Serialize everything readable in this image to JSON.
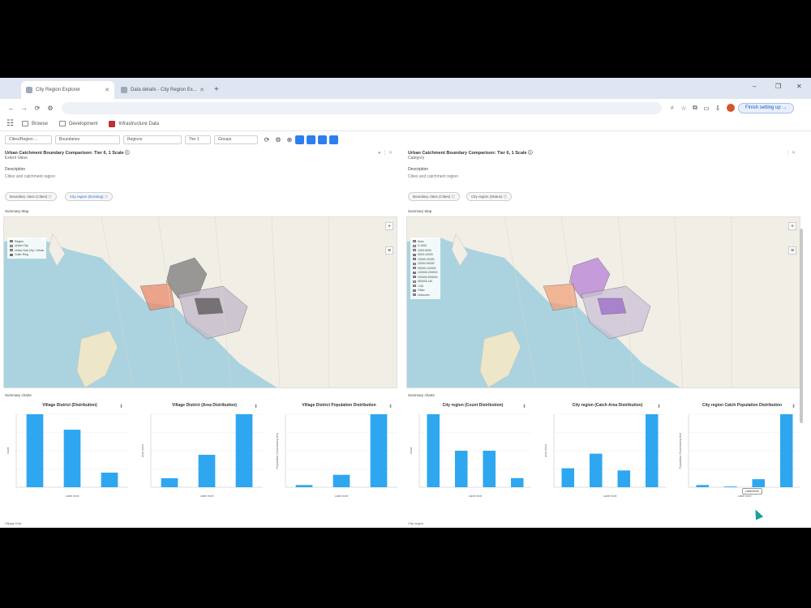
{
  "browser": {
    "tabs": [
      {
        "label": "City Region Explorer"
      },
      {
        "label": "Data details - City Region Ex..."
      }
    ],
    "address": "",
    "finish_label": "Finish setting up →",
    "window_controls": [
      "–",
      "❐",
      "✕"
    ]
  },
  "app": {
    "menu": [
      {
        "label": "Browse"
      },
      {
        "label": "Development"
      },
      {
        "label": "Infrastructure Data"
      }
    ]
  },
  "filters": {
    "selects": [
      "Cities/Region ...",
      "Boundaries",
      "Regions",
      "Tier 1",
      "Groups"
    ]
  },
  "panels": [
    {
      "title": "Urban Catchment Boundary Comparison: Tier 6, 1 Scale ⓘ",
      "subtitle": "Extent Value",
      "label": "Description",
      "value": "Cities and catchment region",
      "chips": [
        "Boundary class (Cities) ⓘ",
        "City region (Existing) ⓘ"
      ],
      "map_label": "Summary Map",
      "legend": [
        "Region",
        "Urban City",
        "Urban Sub-City / Urban",
        "Outer Ring"
      ],
      "chart_section": "Summary charts",
      "charts": [
        {
          "title": "Village District (Distribution)",
          "values": [
            85,
            67,
            17
          ],
          "categories": [
            "",
            "",
            ""
          ],
          "x_label": "Label level",
          "y_label": "count"
        },
        {
          "title": "Village District (Area Distribution)",
          "values": [
            10,
            36,
            81
          ],
          "categories": [
            "",
            "",
            ""
          ],
          "x_label": "Label level",
          "y_label": "area (km²)"
        },
        {
          "title": "Village District Population Distribution",
          "values": [
            3,
            17,
            100
          ],
          "categories": [
            "",
            "",
            ""
          ],
          "x_label": "Label level",
          "y_label": "Population (Summed by tier)"
        }
      ],
      "bottom_label": "Village Dist."
    },
    {
      "title": "Urban Catchment Boundary Comparison: Tier 6, 1 Scale ⓘ",
      "subtitle": "Category",
      "label": "Description",
      "value": "Cities and catchment region",
      "chips": [
        "Boundary class (Cities) ⓘ",
        "City region (Status) ⓘ"
      ],
      "map_label": "Summary Map",
      "legend": [
        "Area",
        "0-1000",
        "1000-5000",
        "5000-10000",
        "10000-20000",
        "20000-50000",
        "50000-100000",
        "100000-200000",
        "200000-500000",
        "500000-1M",
        ">1M",
        "Other",
        "Unknown"
      ],
      "chart_section": "Summary charts",
      "charts": [
        {
          "title": "City region (Count Distribution)",
          "values": [
            80,
            40,
            40,
            10
          ],
          "categories": [
            "",
            "",
            "",
            ""
          ],
          "x_label": "Label level",
          "y_label": "count"
        },
        {
          "title": "City region (Catch Area Distribution)",
          "values": [
            26,
            46,
            23,
            100
          ],
          "categories": [
            "",
            "",
            "",
            ""
          ],
          "x_label": "Label level",
          "y_label": "area (km²)"
        },
        {
          "title": "City region Catch Population Distribution",
          "values": [
            3,
            1,
            11,
            100
          ],
          "categories": [
            "",
            "",
            "",
            ""
          ],
          "x_label": "Label level",
          "y_label": "Population (Summed by tier)"
        }
      ],
      "tooltip": "Label level",
      "bottom_label": "City region"
    }
  ],
  "colors": {
    "bar": "#2ea7f0",
    "water": "#aad3df",
    "land": "#f1eee6",
    "accent": "#2d7ef0",
    "left_regions": [
      "#7a7a7a",
      "#c0b8c8",
      "#e88a6a",
      "#555555"
    ],
    "right_regions": [
      "#b57fd6",
      "#c9c0d6",
      "#f0a07a",
      "#9b6ac9"
    ]
  }
}
